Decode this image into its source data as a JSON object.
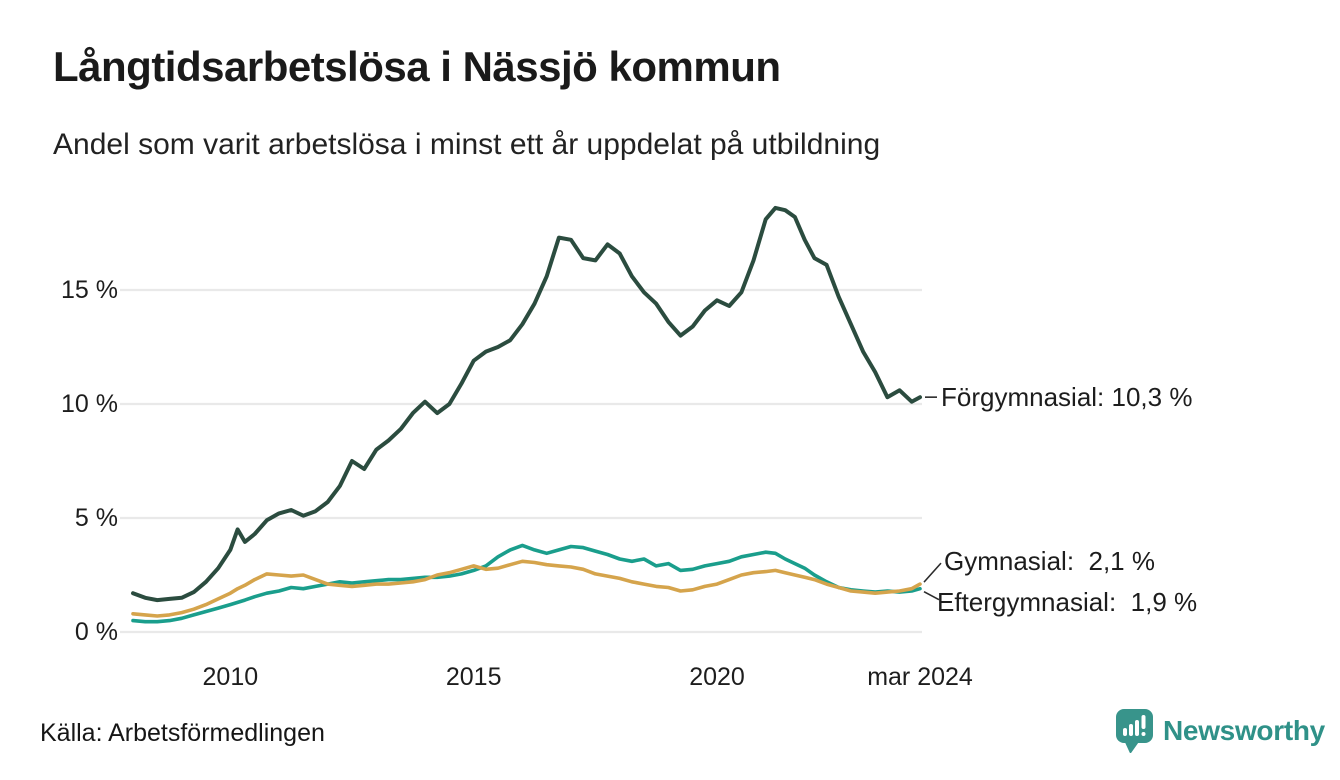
{
  "header": {
    "title": "Långtidsarbetslösa i Nässjö kommun",
    "subtitle": "Andel som varit arbetslösa i minst ett år uppdelat på utbildning"
  },
  "footer": {
    "source": "Källa: Arbetsförmedlingen",
    "brand": "Newsworthy"
  },
  "colors": {
    "forgymnasial": "#2b4c3f",
    "gymnasial": "#d5a44c",
    "eftergymnasial": "#1a9e8c",
    "grid": "#e9e9e9",
    "connector": "#2b2b2b",
    "text": "#1a1a1a",
    "brand_teal": "#2f9188"
  },
  "annotations": [
    {
      "series": "forgymnasial",
      "label": "Förgymnasial: 10,3 %"
    },
    {
      "series": "gymnasial",
      "label": "Gymnasial:  2,1 %"
    },
    {
      "series": "eftergymnasial",
      "label": "Eftergymnasial:  1,9 %"
    }
  ],
  "chart_data": {
    "type": "line",
    "title": "Långtidsarbetslösa i Nässjö kommun",
    "subtitle": "Andel som varit arbetslösa i minst ett år uppdelat på utbildning",
    "xlabel": "",
    "ylabel": "",
    "grid": "horizontal",
    "legend_position": "end-of-line labels, right side",
    "xlim": [
      2008.0,
      2024.17
    ],
    "ylim": [
      0,
      19.5
    ],
    "yticks": [
      {
        "value": 0,
        "label": "0 %"
      },
      {
        "value": 5,
        "label": "5 %"
      },
      {
        "value": 10,
        "label": "10 %"
      },
      {
        "value": 15,
        "label": "15 %"
      }
    ],
    "xticks": [
      {
        "value": 2010,
        "label": "2010"
      },
      {
        "value": 2015,
        "label": "2015"
      },
      {
        "value": 2020,
        "label": "2020"
      },
      {
        "value": 2024.17,
        "label": "mar 2024"
      }
    ],
    "x": [
      2008.0,
      2008.25,
      2008.5,
      2008.75,
      2009.0,
      2009.25,
      2009.5,
      2009.75,
      2010.0,
      2010.15,
      2010.3,
      2010.5,
      2010.75,
      2011.0,
      2011.25,
      2011.5,
      2011.75,
      2012.0,
      2012.25,
      2012.5,
      2012.75,
      2013.0,
      2013.25,
      2013.5,
      2013.75,
      2014.0,
      2014.25,
      2014.5,
      2014.75,
      2015.0,
      2015.25,
      2015.5,
      2015.75,
      2016.0,
      2016.25,
      2016.5,
      2016.75,
      2017.0,
      2017.25,
      2017.5,
      2017.75,
      2018.0,
      2018.25,
      2018.5,
      2018.75,
      2019.0,
      2019.25,
      2019.5,
      2019.75,
      2020.0,
      2020.25,
      2020.5,
      2020.75,
      2021.0,
      2021.2,
      2021.4,
      2021.6,
      2021.8,
      2022.0,
      2022.25,
      2022.5,
      2022.75,
      2023.0,
      2023.25,
      2023.5,
      2023.75,
      2024.0,
      2024.17
    ],
    "series": [
      {
        "name": "Förgymnasial",
        "color_key": "forgymnasial",
        "end_value": 10.3,
        "end_value_text": "10,3 %",
        "values": [
          1.7,
          1.5,
          1.4,
          1.45,
          1.5,
          1.75,
          2.2,
          2.8,
          3.6,
          4.5,
          3.95,
          4.3,
          4.9,
          5.2,
          5.35,
          5.1,
          5.3,
          5.7,
          6.4,
          7.5,
          7.15,
          8.0,
          8.4,
          8.9,
          9.6,
          10.1,
          9.6,
          10.0,
          10.9,
          11.9,
          12.3,
          12.5,
          12.8,
          13.5,
          14.4,
          15.6,
          17.3,
          17.2,
          16.4,
          16.3,
          17.0,
          16.6,
          15.6,
          14.9,
          14.4,
          13.6,
          13.0,
          13.4,
          14.1,
          14.55,
          14.3,
          14.9,
          16.3,
          18.1,
          18.6,
          18.5,
          18.2,
          17.2,
          16.4,
          16.1,
          14.7,
          13.5,
          12.3,
          11.4,
          10.3,
          10.6,
          10.1,
          10.3
        ]
      },
      {
        "name": "Gymnasial",
        "color_key": "gymnasial",
        "end_value": 2.1,
        "end_value_text": "2,1 %",
        "values": [
          0.8,
          0.75,
          0.7,
          0.75,
          0.85,
          1.0,
          1.2,
          1.45,
          1.7,
          1.9,
          2.05,
          2.3,
          2.55,
          2.5,
          2.45,
          2.5,
          2.3,
          2.1,
          2.05,
          2.0,
          2.05,
          2.1,
          2.1,
          2.15,
          2.2,
          2.3,
          2.5,
          2.6,
          2.75,
          2.9,
          2.75,
          2.8,
          2.95,
          3.1,
          3.05,
          2.95,
          2.9,
          2.85,
          2.75,
          2.55,
          2.45,
          2.35,
          2.2,
          2.1,
          2.0,
          1.95,
          1.8,
          1.85,
          2.0,
          2.1,
          2.3,
          2.5,
          2.6,
          2.65,
          2.7,
          2.6,
          2.5,
          2.4,
          2.3,
          2.1,
          1.95,
          1.8,
          1.75,
          1.7,
          1.75,
          1.8,
          1.9,
          2.1
        ]
      },
      {
        "name": "Eftergymnasial",
        "color_key": "eftergymnasial",
        "end_value": 1.9,
        "end_value_text": "1,9 %",
        "values": [
          0.5,
          0.45,
          0.45,
          0.5,
          0.6,
          0.75,
          0.9,
          1.05,
          1.2,
          1.3,
          1.4,
          1.55,
          1.7,
          1.8,
          1.95,
          1.9,
          2.0,
          2.1,
          2.2,
          2.15,
          2.2,
          2.25,
          2.3,
          2.3,
          2.35,
          2.4,
          2.4,
          2.45,
          2.55,
          2.7,
          2.9,
          3.3,
          3.6,
          3.8,
          3.6,
          3.45,
          3.6,
          3.75,
          3.7,
          3.55,
          3.4,
          3.2,
          3.1,
          3.2,
          2.9,
          3.0,
          2.7,
          2.75,
          2.9,
          3.0,
          3.1,
          3.3,
          3.4,
          3.5,
          3.45,
          3.2,
          3.0,
          2.8,
          2.5,
          2.2,
          1.95,
          1.85,
          1.8,
          1.75,
          1.8,
          1.75,
          1.8,
          1.9
        ]
      }
    ]
  }
}
